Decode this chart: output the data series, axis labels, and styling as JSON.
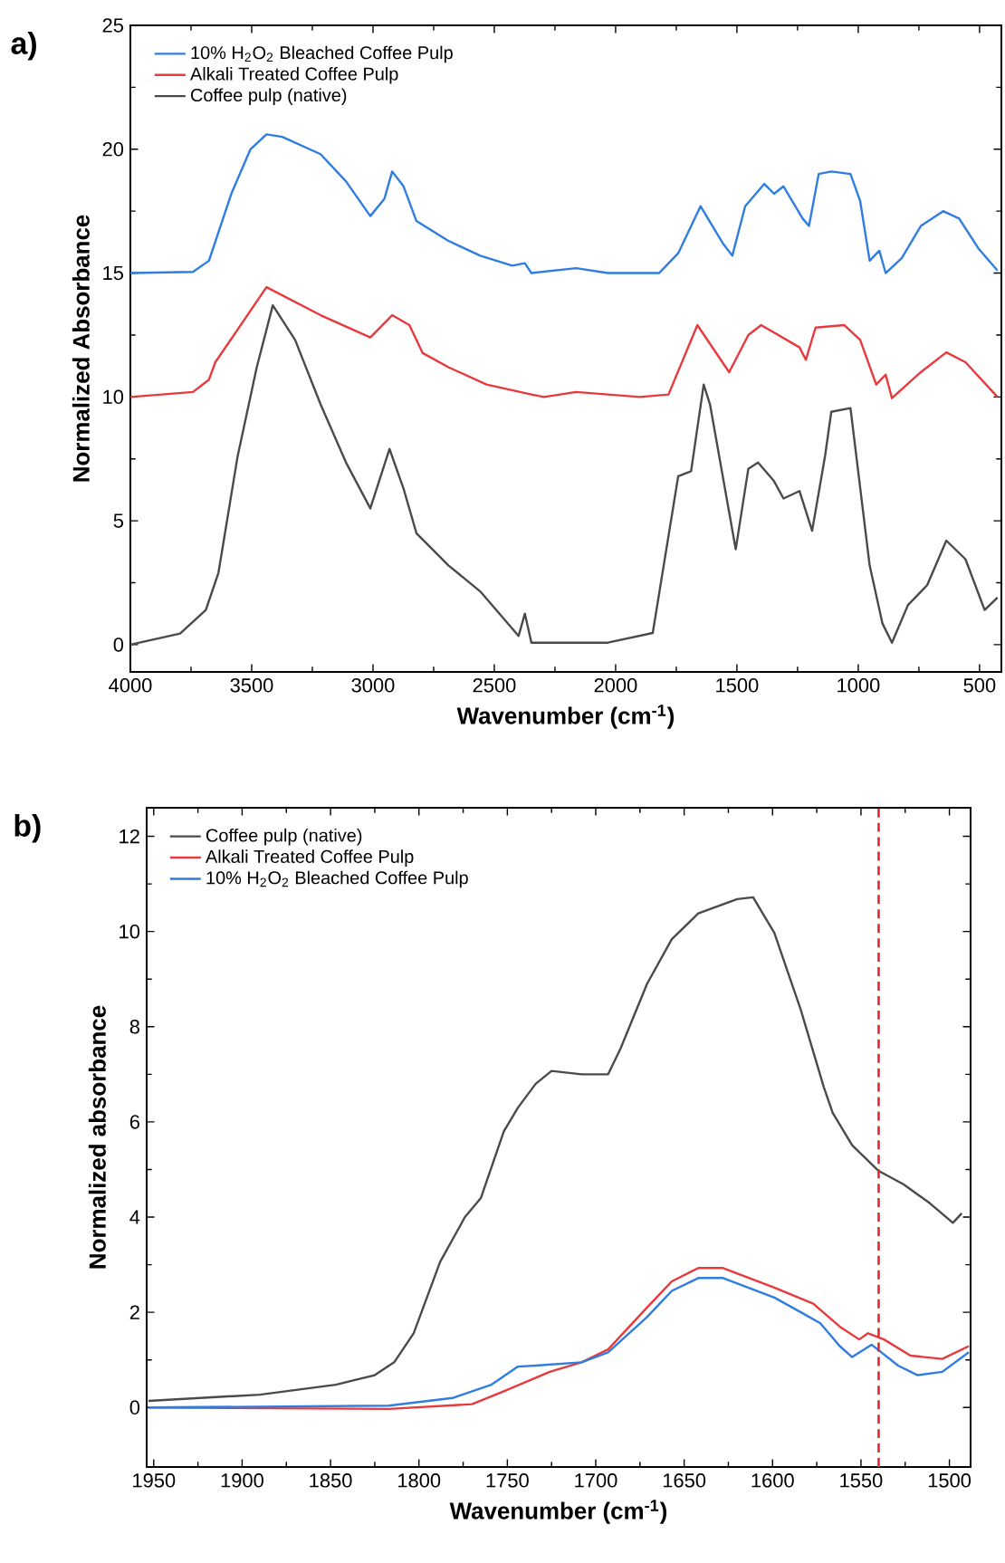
{
  "chart_data": [
    {
      "type": "line",
      "xlabel": "Wavenumber (cm$^{-1}$)",
      "ylabel": "Normalized Absorbance",
      "annotations": [
        "a)"
      ],
      "xlim": [
        4000,
        410
      ],
      "ylim": [
        -1.1,
        25
      ],
      "xticks": [
        4000,
        3500,
        3000,
        2500,
        2000,
        1500,
        1000,
        500
      ],
      "yticks": [
        0,
        5,
        10,
        15,
        20,
        25
      ],
      "legend": "top left",
      "grid": false,
      "series": [
        {
          "name": "10% H$_{2}$O$_{2}$ Bleached Coffee Pulp",
          "color": "#2f7de1",
          "x": [
            4000,
            3742,
            3676,
            3584,
            3505,
            3439,
            3374,
            3216,
            3111,
            3011,
            2953,
            2921,
            2874,
            2821,
            2689,
            2558,
            2426,
            2374,
            2347,
            2163,
            2032,
            1821,
            1742,
            1650,
            1558,
            1519,
            1466,
            1387,
            1347,
            1308,
            1229,
            1203,
            1163,
            1111,
            1032,
            992,
            953,
            913,
            887,
            821,
            742,
            650,
            584,
            505,
            426
          ],
          "values": [
            15.0,
            15.05,
            15.5,
            18.2,
            20.0,
            20.6,
            20.5,
            19.8,
            18.7,
            17.3,
            18.0,
            19.1,
            18.5,
            17.1,
            16.3,
            15.7,
            15.3,
            15.4,
            15.0,
            15.2,
            15.0,
            15.0,
            15.8,
            17.7,
            16.2,
            15.7,
            17.7,
            18.6,
            18.2,
            18.5,
            17.2,
            16.9,
            19.0,
            19.1,
            19.0,
            17.9,
            15.5,
            15.9,
            15.0,
            15.6,
            16.9,
            17.5,
            17.2,
            16.0,
            15.1
          ]
        },
        {
          "name": "Alkali Treated Coffee Pulp",
          "color": "#e8393c",
          "x": [
            4000,
            3742,
            3676,
            3650,
            3439,
            3216,
            3011,
            2921,
            2850,
            2795,
            2689,
            2532,
            2347,
            2295,
            2163,
            1900,
            1782,
            1663,
            1532,
            1453,
            1400,
            1242,
            1216,
            1176,
            1058,
            992,
            926,
            887,
            861,
            742,
            637,
            558,
            426
          ],
          "values": [
            10.0,
            10.2,
            10.7,
            11.4,
            14.43,
            13.3,
            12.4,
            13.3,
            12.9,
            11.77,
            11.2,
            10.5,
            10.1,
            10.0,
            10.2,
            10.0,
            10.1,
            12.9,
            11.0,
            12.5,
            12.9,
            12.0,
            11.5,
            12.8,
            12.9,
            12.3,
            10.5,
            10.9,
            9.95,
            11.0,
            11.8,
            11.4,
            10.0
          ]
        },
        {
          "name": "Coffee pulp (native)",
          "color": "#4a4a4a",
          "x": [
            4000,
            3795,
            3689,
            3637,
            3558,
            3479,
            3413,
            3321,
            3216,
            3111,
            3011,
            2932,
            2874,
            2821,
            2689,
            2558,
            2400,
            2374,
            2347,
            2295,
            2032,
            1847,
            1742,
            1689,
            1637,
            1611,
            1505,
            1453,
            1413,
            1347,
            1308,
            1242,
            1190,
            1137,
            1111,
            1032,
            953,
            900,
            861,
            795,
            716,
            637,
            558,
            479,
            426
          ],
          "values": [
            0.0,
            0.45,
            1.4,
            2.9,
            7.6,
            11.2,
            13.7,
            12.3,
            9.7,
            7.35,
            5.5,
            7.9,
            6.3,
            4.5,
            3.2,
            2.15,
            0.35,
            1.25,
            0.08,
            0.08,
            0.08,
            0.47,
            6.8,
            7.0,
            10.5,
            9.7,
            3.85,
            7.1,
            7.35,
            6.6,
            5.9,
            6.2,
            4.6,
            7.6,
            9.4,
            9.55,
            3.2,
            0.85,
            0.08,
            1.6,
            2.4,
            4.2,
            3.45,
            1.4,
            1.9
          ]
        }
      ]
    },
    {
      "type": "line",
      "xlabel": "Wavenumber (cm$^{-1}$)",
      "ylabel": "Normalized absorbance",
      "annotations": [
        "b)"
      ],
      "xlim": [
        1954,
        1488
      ],
      "ylim": [
        -1.25,
        12.6
      ],
      "xticks": [
        1950,
        1900,
        1850,
        1800,
        1750,
        1700,
        1650,
        1600,
        1550,
        1500
      ],
      "yticks": [
        0,
        2,
        4,
        6,
        8,
        10,
        12
      ],
      "legend": "top left",
      "grid": false,
      "ref_lines": [
        {
          "axis": "x",
          "value": 1540,
          "color": "#e8262a",
          "line_style": "dashed"
        }
      ],
      "series": [
        {
          "name": "Coffee pulp (native)",
          "color": "#4a4a4a",
          "x": [
            1953,
            1890,
            1847,
            1825,
            1814,
            1803,
            1788,
            1774,
            1765,
            1752,
            1744,
            1734,
            1725,
            1708,
            1693,
            1686,
            1671,
            1657,
            1642,
            1620,
            1611,
            1599,
            1584,
            1571,
            1566,
            1555,
            1540,
            1526,
            1511,
            1498,
            1493
          ],
          "values": [
            0.14,
            0.27,
            0.48,
            0.68,
            0.95,
            1.56,
            3.06,
            4.0,
            4.4,
            5.8,
            6.3,
            6.8,
            7.07,
            7.0,
            7.0,
            7.54,
            8.9,
            9.84,
            10.38,
            10.68,
            10.72,
            9.97,
            8.35,
            6.73,
            6.19,
            5.51,
            4.97,
            4.69,
            4.29,
            3.88,
            4.08
          ]
        },
        {
          "name": "Alkali Treated Coffee Pulp",
          "color": "#e8393c",
          "x": [
            1953,
            1817,
            1770,
            1752,
            1726,
            1708,
            1693,
            1671,
            1657,
            1642,
            1628,
            1599,
            1577,
            1562,
            1551,
            1546,
            1537,
            1522,
            1504,
            1489
          ],
          "values": [
            0.0,
            -0.03,
            0.07,
            0.34,
            0.75,
            0.95,
            1.22,
            2.1,
            2.65,
            2.93,
            2.93,
            2.52,
            2.18,
            1.7,
            1.43,
            1.56,
            1.43,
            1.09,
            1.02,
            1.29
          ]
        },
        {
          "name": "10% H$_{2}$O$_{2}$ Bleached Coffee Pulp",
          "color": "#2f7de1",
          "x": [
            1953,
            1817,
            1781,
            1759,
            1744,
            1734,
            1708,
            1693,
            1671,
            1657,
            1642,
            1628,
            1599,
            1584,
            1573,
            1562,
            1555,
            1544,
            1529,
            1518,
            1504,
            1489
          ],
          "values": [
            0.0,
            0.04,
            0.2,
            0.48,
            0.86,
            0.88,
            0.95,
            1.16,
            1.9,
            2.45,
            2.72,
            2.72,
            2.31,
            2.0,
            1.77,
            1.29,
            1.06,
            1.32,
            0.88,
            0.68,
            0.75,
            1.16
          ]
        }
      ]
    }
  ]
}
